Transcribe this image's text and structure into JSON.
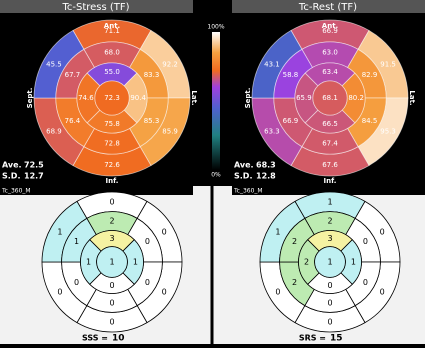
{
  "colorbar": {
    "max_label": "100%",
    "min_label": "0%"
  },
  "stress_panel": {
    "title": "Tc-Stress (TF)",
    "top": "Ant.",
    "bottom": "Inf.",
    "left": "Sept.",
    "right": "Lat.",
    "ave_label": "Ave.",
    "ave": "72.5",
    "sd_label": "S.D.",
    "sd": "12.7",
    "basal": [
      "71.1",
      "92.2",
      "85.9",
      "72.6",
      "68.9",
      "45.5"
    ],
    "mid": [
      "68.0",
      "83.3",
      "85.3",
      "72.8",
      "76.4",
      "67.7"
    ],
    "apical": [
      "55.0",
      "90.4",
      "75.8",
      "74.6"
    ],
    "apex": "72.3"
  },
  "rest_panel": {
    "title": "Tc-Rest (TF)",
    "top": "Ant.",
    "bottom": "Inf.",
    "left": "Sept.",
    "right": "Lat.",
    "ave_label": "Ave.",
    "ave": "68.3",
    "sd_label": "S.D.",
    "sd": "12.8",
    "basal": [
      "66.9",
      "91.5",
      "95.3",
      "67.6",
      "63.3",
      "43.1"
    ],
    "mid": [
      "63.0",
      "82.9",
      "84.5",
      "67.4",
      "66.9",
      "58.8"
    ],
    "apical": [
      "63.4",
      "80.2",
      "66.5",
      "65.9"
    ],
    "apex": "68.1"
  },
  "stress_scores": {
    "title": "Tc_360_M",
    "summary_label": "SSS =",
    "summary_value": 10,
    "basal": [
      0,
      0,
      0,
      0,
      0,
      1
    ],
    "mid": [
      2,
      0,
      0,
      0,
      0,
      1
    ],
    "apical": [
      3,
      1,
      0,
      1
    ],
    "apex": 1
  },
  "rest_scores": {
    "title": "Tc_360_M",
    "summary_label": "SRS =",
    "summary_value": 15,
    "basal": [
      1,
      0,
      0,
      0,
      0,
      1
    ],
    "mid": [
      2,
      0,
      0,
      0,
      2,
      2
    ],
    "apical": [
      3,
      1,
      0,
      2
    ],
    "apex": 1
  }
}
